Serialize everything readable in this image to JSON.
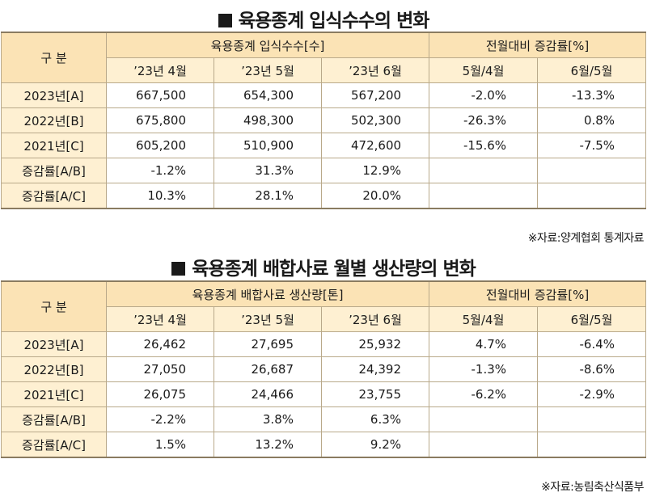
{
  "sections": [
    {
      "title": "육용종계 입식수수의 변화",
      "header": {
        "label_col": "구 분",
        "group1": "육용종계 입식수수[수]",
        "group2": "전월대비 증감률[%]",
        "months": [
          "’23년 4월",
          "’23년 5월",
          "’23년 6월"
        ],
        "ratios": [
          "5월/4월",
          "6월/5월"
        ]
      },
      "rows": [
        {
          "label": "2023년[A]",
          "values": [
            "667,500",
            "654,300",
            "567,200"
          ],
          "ratios": [
            "-2.0%",
            "-13.3%"
          ]
        },
        {
          "label": "2022년[B]",
          "values": [
            "675,800",
            "498,300",
            "502,300"
          ],
          "ratios": [
            "-26.3%",
            "0.8%"
          ]
        },
        {
          "label": "2021년[C]",
          "values": [
            "605,200",
            "510,900",
            "472,600"
          ],
          "ratios": [
            "-15.6%",
            "-7.5%"
          ]
        },
        {
          "label": "증감률[A/B]",
          "values": [
            "-1.2%",
            "31.3%",
            "12.9%"
          ],
          "ratios": [
            "",
            ""
          ]
        },
        {
          "label": "증감률[A/C]",
          "values": [
            "10.3%",
            "28.1%",
            "20.0%"
          ],
          "ratios": [
            "",
            ""
          ]
        }
      ],
      "source": "※자료:양계협회 통계자료"
    },
    {
      "title": "육용종계 배합사료 월별 생산량의 변화",
      "header": {
        "label_col": "구 분",
        "group1": "육용종계  배합사료 생산량[톤]",
        "group2": "전월대비 증감률[%]",
        "months": [
          "’23년 4월",
          "’23년 5월",
          "’23년 6월"
        ],
        "ratios": [
          "5월/4월",
          "6월/5월"
        ]
      },
      "rows": [
        {
          "label": "2023년[A]",
          "values": [
            "26,462",
            "27,695",
            "25,932"
          ],
          "ratios": [
            "4.7%",
            "-6.4%"
          ]
        },
        {
          "label": "2022년[B]",
          "values": [
            "27,050",
            "26,687",
            "24,392"
          ],
          "ratios": [
            "-1.3%",
            "-8.6%"
          ]
        },
        {
          "label": "2021년[C]",
          "values": [
            "26,075",
            "24,466",
            "23,755"
          ],
          "ratios": [
            "-6.2%",
            "-2.9%"
          ]
        },
        {
          "label": "증감률[A/B]",
          "values": [
            "-2.2%",
            "3.8%",
            "6.3%"
          ],
          "ratios": [
            "",
            ""
          ]
        },
        {
          "label": "증감률[A/C]",
          "values": [
            "1.5%",
            "13.2%",
            "9.2%"
          ],
          "ratios": [
            "",
            ""
          ]
        }
      ],
      "source": "※자료:농림축산식품부"
    }
  ]
}
